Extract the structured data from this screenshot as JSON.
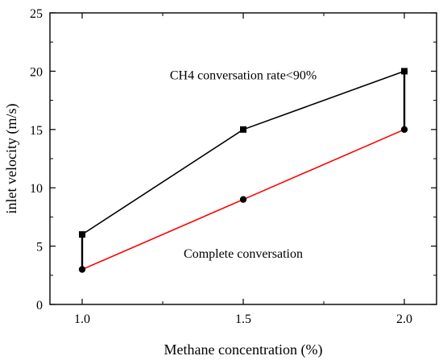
{
  "chart_data": {
    "type": "line",
    "xlabel": "Methane concentration (%)",
    "ylabel": "inlet velocity (m/s)",
    "xlim": [
      0.9,
      2.1
    ],
    "ylim": [
      0,
      25
    ],
    "x_ticks": [
      1.0,
      1.5,
      2.0
    ],
    "x_tick_labels": [
      "1.0",
      "1.5",
      "2.0"
    ],
    "y_ticks": [
      0,
      5,
      10,
      15,
      20,
      25
    ],
    "y_tick_labels": [
      "0",
      "5",
      "10",
      "15",
      "20",
      "25"
    ],
    "grid": false,
    "legend": "none",
    "series": [
      {
        "x": [
          1.0,
          1.5,
          2.0
        ],
        "values": [
          6,
          15,
          20
        ],
        "color": "#000000",
        "marker": "square"
      },
      {
        "x": [
          1.0,
          1.5,
          2.0
        ],
        "values": [
          3,
          9,
          15
        ],
        "color": "#ff0000",
        "marker": "circle"
      }
    ],
    "boundaries": [
      {
        "x": 1.0,
        "from": 3,
        "to": 6,
        "color": "#000000"
      },
      {
        "x": 2.0,
        "from": 15,
        "to": 20,
        "color": "#000000"
      }
    ],
    "annotations": [
      {
        "text": "CH4 conversation rate<90%",
        "x": 1.5,
        "y": 19.3
      },
      {
        "text": "Complete conversation",
        "x": 1.5,
        "y": 4.0
      }
    ]
  }
}
